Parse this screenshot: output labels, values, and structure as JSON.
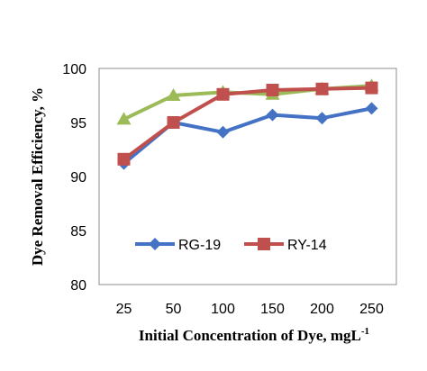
{
  "chart_data": {
    "type": "line",
    "title": "",
    "xlabel": "Initial Concentration of Dye, mgL",
    "xlabel_sup": "-1",
    "ylabel": "Dye Removal Efficiency, %",
    "categories": [
      "25",
      "50",
      "100",
      "150",
      "200",
      "250"
    ],
    "yticks": [
      "80",
      "85",
      "90",
      "95",
      "100"
    ],
    "ylim": [
      80,
      100
    ],
    "grid": false,
    "legend_placement": "bottom-center",
    "series": [
      {
        "name": "RG-19",
        "values": [
          91.2,
          95.0,
          94.1,
          95.7,
          95.4,
          96.3
        ],
        "color": "#4472C4",
        "marker": "diamond"
      },
      {
        "name": "RY-14",
        "values": [
          91.6,
          95.0,
          97.6,
          98.0,
          98.1,
          98.2
        ],
        "color": "#C0504D",
        "marker": "square"
      },
      {
        "name": "",
        "values": [
          95.3,
          97.5,
          97.8,
          97.6,
          98.1,
          98.4
        ],
        "color": "#9BBB59",
        "marker": "triangle"
      }
    ]
  }
}
